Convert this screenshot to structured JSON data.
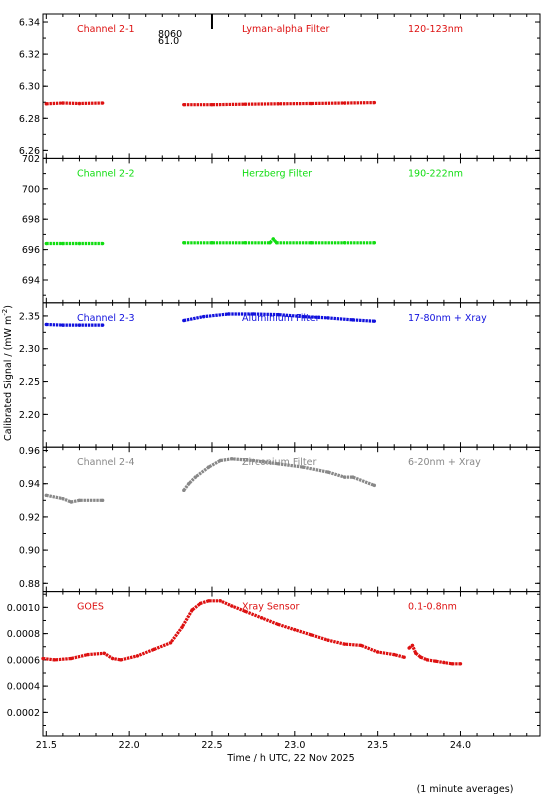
{
  "chart_data": {
    "type": "scatter",
    "xlabel": "Time / h UTC, 22 Nov 2025",
    "ylabel": "Calibrated Signal / (mW m",
    "ylabel_sup": "-2",
    "ylabel_end": ")",
    "footnote": "(1 minute averages)",
    "xlim": [
      21.48,
      24.48
    ],
    "xticks": [
      21.5,
      22.0,
      22.5,
      23.0,
      23.5,
      24.0
    ],
    "xtick_labels": [
      "21.5",
      "22.0",
      "22.5",
      "23.0",
      "23.5",
      "24.0"
    ],
    "marker_annotation": {
      "x": 22.5,
      "lines": [
        "8060",
        "61.0"
      ]
    },
    "panels": [
      {
        "channel": "Channel 2-1",
        "filter": "Lyman-alpha Filter",
        "band": "120-123nm",
        "color": "#dd1111",
        "ylim": [
          6.255,
          6.345
        ],
        "yticks": [
          6.26,
          6.28,
          6.3,
          6.32,
          6.34
        ],
        "ytick_labels": [
          "6.26",
          "6.28",
          "6.30",
          "6.32",
          "6.34"
        ],
        "series": [
          {
            "x": [
              21.5,
              21.6,
              21.7,
              21.84
            ],
            "y": [
              6.289,
              6.2895,
              6.2892,
              6.2895
            ]
          },
          {
            "x": [
              22.33,
              22.5,
              22.7,
              22.9,
              23.1,
              23.3,
              23.48
            ],
            "y": [
              6.2885,
              6.2885,
              6.2888,
              6.289,
              6.2892,
              6.2895,
              6.2898
            ]
          }
        ]
      },
      {
        "channel": "Channel 2-2",
        "filter": "Herzberg Filter",
        "band": "190-222nm",
        "color": "#11dd11",
        "ylim": [
          692.5,
          702.0
        ],
        "yticks": [
          694,
          696,
          698,
          700,
          702
        ],
        "ytick_labels": [
          "694",
          "696",
          "698",
          "700",
          "702"
        ],
        "series": [
          {
            "x": [
              21.5,
              21.6,
              21.7,
              21.84
            ],
            "y": [
              696.4,
              696.4,
              696.4,
              696.4
            ]
          },
          {
            "x": [
              22.33,
              22.5,
              22.7,
              22.85,
              22.87,
              22.89,
              23.1,
              23.3,
              23.48
            ],
            "y": [
              696.45,
              696.45,
              696.45,
              696.45,
              696.7,
              696.45,
              696.45,
              696.45,
              696.45
            ]
          }
        ]
      },
      {
        "channel": "Channel 2-3",
        "filter": "Aluminium Filter",
        "band": "17-80nm + Xray",
        "color": "#1111dd",
        "ylim": [
          2.15,
          2.37
        ],
        "yticks": [
          2.2,
          2.25,
          2.3,
          2.35
        ],
        "ytick_labels": [
          "2.20",
          "2.25",
          "2.30",
          "2.35"
        ],
        "series": [
          {
            "x": [
              21.5,
              21.6,
              21.7,
              21.84
            ],
            "y": [
              2.337,
              2.336,
              2.336,
              2.336
            ]
          },
          {
            "x": [
              22.33,
              22.45,
              22.6,
              22.75,
              22.9,
              23.05,
              23.2,
              23.35,
              23.48
            ],
            "y": [
              2.343,
              2.349,
              2.353,
              2.353,
              2.352,
              2.349,
              2.347,
              2.344,
              2.342
            ]
          }
        ]
      },
      {
        "channel": "Channel 2-4",
        "filter": "Zirconium Filter",
        "band": "6-20nm + Xray",
        "color": "#888888",
        "ylim": [
          0.875,
          0.962
        ],
        "yticks": [
          0.88,
          0.9,
          0.92,
          0.94,
          0.96
        ],
        "ytick_labels": [
          "0.88",
          "0.90",
          "0.92",
          "0.94",
          "0.96"
        ],
        "series": [
          {
            "x": [
              21.5,
              21.6,
              21.65,
              21.7,
              21.84
            ],
            "y": [
              0.933,
              0.931,
              0.929,
              0.93,
              0.93
            ]
          },
          {
            "x": [
              22.33,
              22.36,
              22.4,
              22.48,
              22.55,
              22.62,
              22.75,
              22.9,
              23.05,
              23.2,
              23.3,
              23.35,
              23.48
            ],
            "y": [
              0.936,
              0.94,
              0.944,
              0.95,
              0.954,
              0.955,
              0.954,
              0.952,
              0.95,
              0.947,
              0.944,
              0.944,
              0.939
            ]
          }
        ]
      },
      {
        "channel": "GOES",
        "filter": "Xray Sensor",
        "band": "0.1-0.8nm",
        "color": "#dd1111",
        "ylim": [
          2e-05,
          0.00112
        ],
        "yticks": [
          0.0002,
          0.0004,
          0.0006,
          0.0008,
          0.001
        ],
        "ytick_labels": [
          "0.0002",
          "0.0004",
          "0.0006",
          "0.0008",
          "0.0010"
        ],
        "series": [
          {
            "x": [
              21.48,
              21.55,
              21.65,
              21.75,
              21.85,
              21.9,
              21.95,
              22.05,
              22.15,
              22.25,
              22.32,
              22.38,
              22.43,
              22.48,
              22.55,
              22.62,
              22.7,
              22.8,
              22.9,
              23.0,
              23.1,
              23.2,
              23.3,
              23.4,
              23.5,
              23.6,
              23.66
            ],
            "y": [
              0.00061,
              0.0006,
              0.00061,
              0.00064,
              0.00065,
              0.00061,
              0.0006,
              0.00063,
              0.00068,
              0.00073,
              0.00085,
              0.00098,
              0.00103,
              0.00105,
              0.00105,
              0.00101,
              0.00097,
              0.00092,
              0.00087,
              0.00083,
              0.00079,
              0.00075,
              0.00072,
              0.00071,
              0.00066,
              0.00064,
              0.00062
            ]
          },
          {
            "x": [
              23.69,
              23.71,
              23.73,
              23.76,
              23.8,
              23.85,
              23.9,
              23.95,
              24.0
            ],
            "y": [
              0.00069,
              0.00071,
              0.00065,
              0.00062,
              0.0006,
              0.00059,
              0.00058,
              0.00057,
              0.00057
            ]
          }
        ]
      }
    ]
  }
}
